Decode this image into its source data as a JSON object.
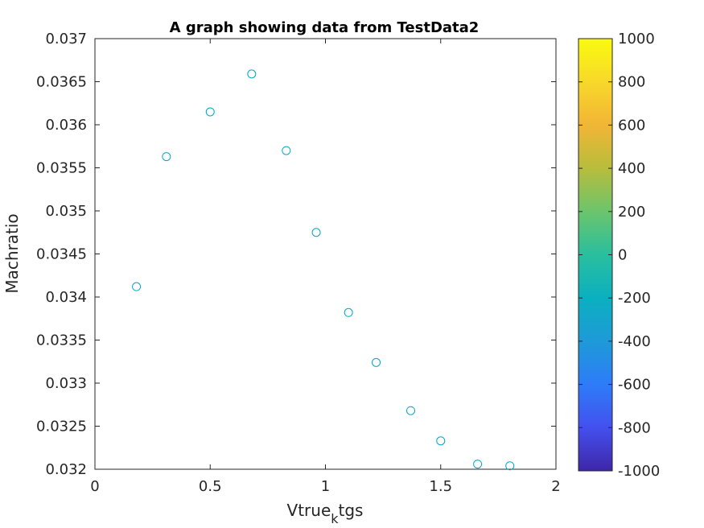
{
  "chart_data": {
    "type": "scatter",
    "title": "A graph showing data from TestData2",
    "xlabel": {
      "base": "Vtrue",
      "subscript": "k",
      "rest": "tgs"
    },
    "ylabel": "Machratio",
    "xlim": [
      0,
      2
    ],
    "ylim": [
      0.032,
      0.037
    ],
    "x_ticks": [
      "0",
      "0.5",
      "1",
      "1.5",
      "2"
    ],
    "y_ticks": [
      "0.032",
      "0.0325",
      "0.033",
      "0.0335",
      "0.034",
      "0.0345",
      "0.035",
      "0.0355",
      "0.036",
      "0.0365",
      "0.037"
    ],
    "grid": false,
    "marker": "circle",
    "marker_color": "#00a8c8",
    "points": [
      {
        "x": 0.18,
        "y": 0.03412
      },
      {
        "x": 0.31,
        "y": 0.03563
      },
      {
        "x": 0.5,
        "y": 0.03615
      },
      {
        "x": 0.68,
        "y": 0.03659
      },
      {
        "x": 0.83,
        "y": 0.0357
      },
      {
        "x": 0.96,
        "y": 0.03475
      },
      {
        "x": 1.1,
        "y": 0.03382
      },
      {
        "x": 1.22,
        "y": 0.03324
      },
      {
        "x": 1.37,
        "y": 0.03268
      },
      {
        "x": 1.5,
        "y": 0.03233
      },
      {
        "x": 1.66,
        "y": 0.03206
      },
      {
        "x": 1.8,
        "y": 0.03204
      }
    ],
    "colorbar": {
      "range": [
        -1000,
        1000
      ],
      "ticks": [
        "1000",
        "800",
        "600",
        "400",
        "200",
        "0",
        "-200",
        "-400",
        "-600",
        "-800",
        "-1000"
      ],
      "colormap": "parula",
      "colors": [
        "#3e26a8",
        "#4450ee",
        "#2d7cf8",
        "#1e9ad8",
        "#0bb0c0",
        "#29bf9e",
        "#6cc46c",
        "#b8bd3c",
        "#f2b536",
        "#f8d82a",
        "#f9fb0e"
      ]
    }
  }
}
